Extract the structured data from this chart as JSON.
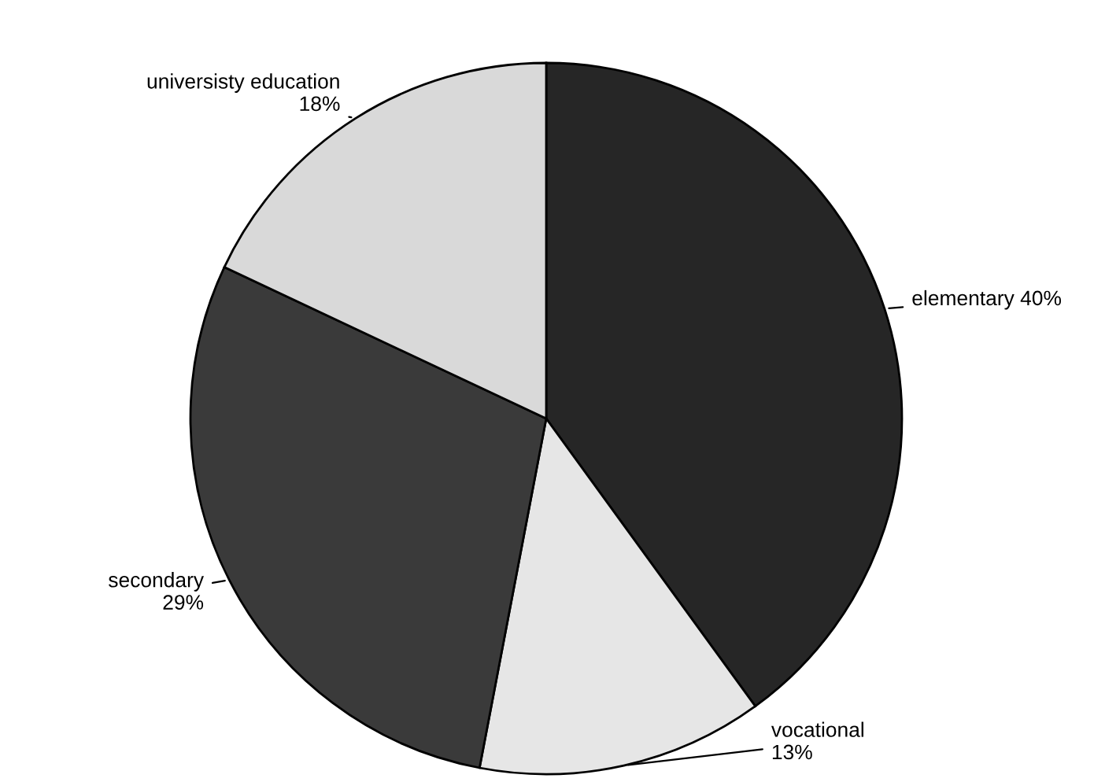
{
  "chart_data": {
    "type": "pie",
    "categories": [
      "elementary",
      "vocational",
      "secondary",
      "universisty education"
    ],
    "values": [
      40,
      13,
      29,
      18
    ],
    "value_labels": [
      "40%",
      "13%",
      "29%",
      "18%"
    ],
    "colors": [
      "#262626",
      "#e6e6e6",
      "#3a3a3a",
      "#d9d9d9"
    ],
    "legend": false
  }
}
